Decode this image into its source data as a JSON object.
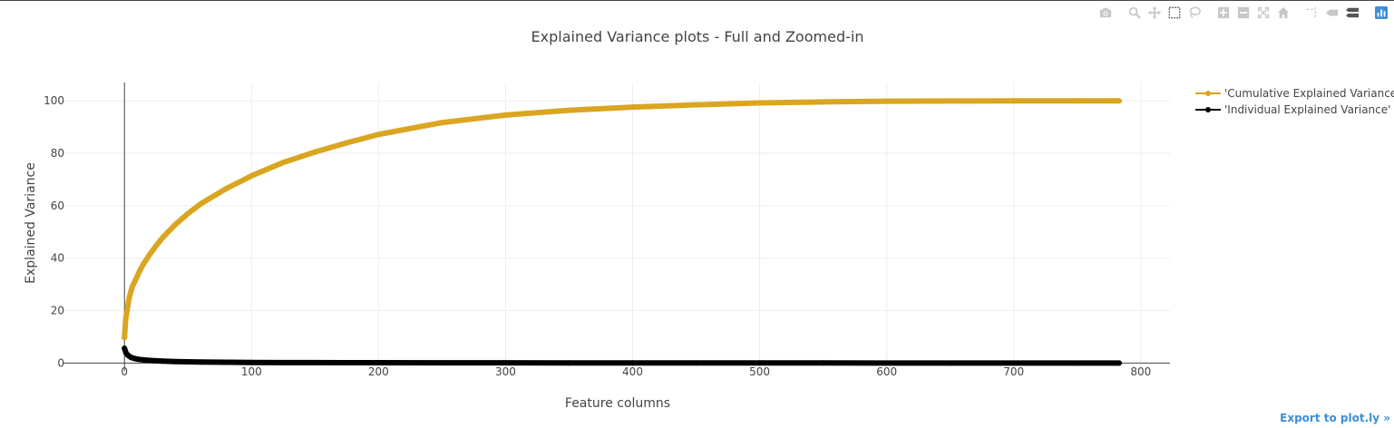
{
  "chart_data": {
    "type": "line",
    "title": "Explained Variance plots - Full and Zoomed-in",
    "xlabel": "Feature columns",
    "ylabel": "Explained Variance",
    "xlim": [
      -48,
      823
    ],
    "ylim": [
      -3,
      107
    ],
    "x_ticks": [
      0,
      100,
      200,
      300,
      400,
      500,
      600,
      700,
      800
    ],
    "y_ticks": [
      0,
      20,
      40,
      60,
      80,
      100
    ],
    "grid": true,
    "legend_position": "top-right",
    "series": [
      {
        "name": "'Cumulative Explained Variance'",
        "color": "#DAA520",
        "marker": "circle",
        "x": [
          0,
          1,
          2,
          3,
          4,
          5,
          6,
          8,
          10,
          12,
          15,
          20,
          25,
          30,
          40,
          50,
          60,
          80,
          100,
          125,
          150,
          175,
          200,
          250,
          300,
          350,
          400,
          450,
          500,
          550,
          600,
          650,
          700,
          750,
          783
        ],
        "y": [
          9.7,
          16.8,
          19.8,
          23.0,
          25.4,
          27.2,
          28.9,
          31.0,
          33.0,
          35.2,
          37.8,
          41.5,
          44.8,
          47.8,
          52.8,
          57.0,
          60.7,
          66.5,
          71.4,
          76.5,
          80.5,
          84.0,
          87.2,
          91.7,
          94.6,
          96.4,
          97.6,
          98.5,
          99.2,
          99.6,
          99.85,
          99.95,
          100.0,
          100.0,
          100.0
        ]
      },
      {
        "name": "'Individual Explained Variance'",
        "color": "#000000",
        "marker": "circle",
        "x": [
          0,
          1,
          2,
          3,
          4,
          5,
          6,
          8,
          10,
          12,
          15,
          20,
          25,
          30,
          40,
          50,
          60,
          80,
          100,
          125,
          150,
          175,
          200,
          250,
          300,
          350,
          400,
          450,
          500,
          550,
          600,
          650,
          700,
          750,
          783
        ],
        "y": [
          5.6,
          4.1,
          3.3,
          2.9,
          2.5,
          2.2,
          2.0,
          1.7,
          1.5,
          1.35,
          1.2,
          1.0,
          0.85,
          0.72,
          0.55,
          0.45,
          0.38,
          0.28,
          0.22,
          0.17,
          0.14,
          0.12,
          0.1,
          0.07,
          0.05,
          0.04,
          0.03,
          0.02,
          0.015,
          0.01,
          0.005,
          0.003,
          0.001,
          0.0,
          0.0
        ]
      }
    ]
  },
  "toolbar": {
    "icons": [
      "camera-icon",
      "zoom-icon",
      "pan-icon",
      "box-select-icon",
      "lasso-select-icon",
      "zoom-in-icon",
      "zoom-out-icon",
      "autoscale-icon",
      "reset-axes-icon",
      "spike-lines-icon",
      "hover-closest-icon",
      "hover-compare-icon",
      "plotly-logo-icon"
    ],
    "icon_color": "#c8c8c8",
    "logo_color": "#3c8fd6"
  },
  "export_link": "Export to plot.ly »"
}
